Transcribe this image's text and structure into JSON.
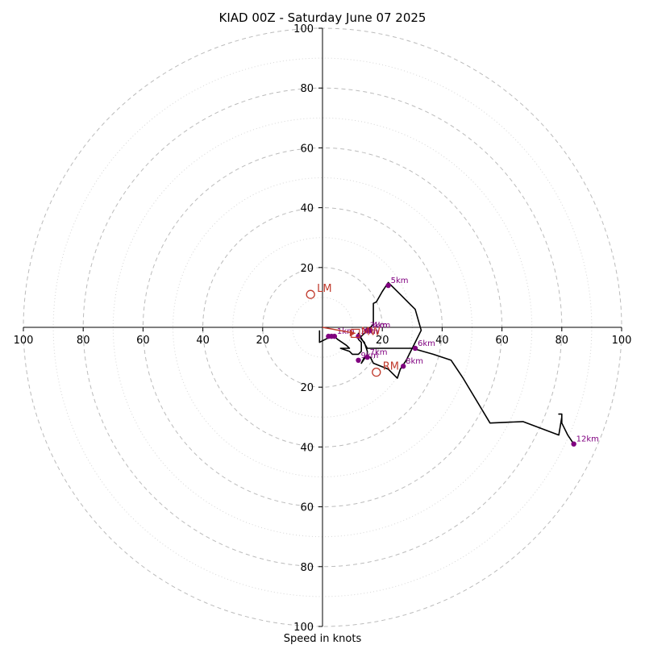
{
  "chart_data": {
    "type": "hodograph",
    "title": "KIAD 00Z - Saturday June 07 2025",
    "xlabel": "Speed in knots",
    "xlim": [
      -100,
      100
    ],
    "ylim": [
      -100,
      100
    ],
    "ring_step": 20,
    "ring_labels_x": [
      "100",
      "80",
      "60",
      "40",
      "20",
      "20",
      "40",
      "60",
      "80",
      "100"
    ],
    "ring_labels_y": [
      "100",
      "80",
      "60",
      "40",
      "20",
      "20",
      "40",
      "60",
      "80",
      "100"
    ],
    "grid": true,
    "trace": [
      [
        -1,
        -1
      ],
      [
        -1,
        -3
      ],
      [
        -1,
        -5
      ],
      [
        1,
        -4
      ],
      [
        3,
        -3
      ],
      [
        4,
        -3
      ],
      [
        5,
        -4
      ],
      [
        8,
        -6
      ],
      [
        9,
        -7
      ],
      [
        6,
        -7
      ],
      [
        9,
        -8
      ],
      [
        10,
        -9
      ],
      [
        12,
        -9
      ],
      [
        13,
        -8
      ],
      [
        13,
        -5
      ],
      [
        12,
        -4
      ],
      [
        12,
        -3
      ],
      [
        13,
        -3
      ],
      [
        14,
        -2
      ],
      [
        16,
        0
      ],
      [
        17,
        1
      ],
      [
        17,
        2
      ],
      [
        17,
        4
      ],
      [
        17,
        6
      ],
      [
        17,
        8
      ],
      [
        18,
        8.5
      ],
      [
        20,
        12
      ],
      [
        21,
        13.5
      ],
      [
        22,
        15
      ],
      [
        26,
        11
      ],
      [
        31,
        6
      ],
      [
        33,
        -1
      ],
      [
        31,
        -5
      ],
      [
        30,
        -7
      ],
      [
        28,
        -11
      ],
      [
        26,
        -14
      ],
      [
        25,
        -17
      ],
      [
        22,
        -14
      ],
      [
        17,
        -12
      ],
      [
        16,
        -10
      ],
      [
        14,
        -10
      ],
      [
        13,
        -12
      ],
      [
        15,
        -9
      ],
      [
        15,
        -8
      ],
      [
        14,
        -5
      ],
      [
        13,
        -4
      ],
      [
        12,
        -2
      ],
      [
        15,
        -7
      ],
      [
        16,
        -7
      ],
      [
        20,
        -7
      ],
      [
        28,
        -7
      ],
      [
        30,
        -7
      ],
      [
        37,
        -9
      ],
      [
        43,
        -11
      ],
      [
        47,
        -17
      ],
      [
        56,
        -32
      ],
      [
        67,
        -31.5
      ],
      [
        79,
        -36
      ],
      [
        80,
        -30
      ],
      [
        80,
        -29.5
      ],
      [
        80,
        -29
      ],
      [
        79,
        -29
      ],
      [
        80,
        -29
      ],
      [
        80,
        -32
      ],
      [
        82,
        -36
      ],
      [
        84,
        -39
      ]
    ],
    "height_markers": [
      {
        "label": "12km",
        "u": 84,
        "v": -39
      },
      {
        "label": "8km",
        "u": 27,
        "v": -13
      },
      {
        "label": "7km",
        "u": 15,
        "v": -10
      },
      {
        "label": "6km",
        "u": 31,
        "v": -7
      },
      {
        "label": "5km",
        "u": 22,
        "v": 14
      },
      {
        "label": "4km",
        "u": 16,
        "v": -1
      },
      {
        "label": "3km",
        "u": 15,
        "v": -1
      },
      {
        "label": "2km",
        "u": 12,
        "v": -3
      },
      {
        "label": "1km",
        "u": 4,
        "v": -3
      },
      {
        "label": "9km",
        "u": 12,
        "v": -11
      },
      {
        "label": "",
        "u": 3,
        "v": -3
      },
      {
        "label": "",
        "u": 2,
        "v": -3
      }
    ],
    "storm_motion": [
      {
        "label": "LM",
        "u": -4,
        "v": 11
      },
      {
        "label": "RM",
        "u": 18,
        "v": -15
      },
      {
        "label": "MW",
        "u": 11,
        "v": -2
      }
    ],
    "shear_vector": {
      "from": [
        0,
        0
      ],
      "to": [
        11,
        -2
      ]
    }
  },
  "colors": {
    "trace": "#000000",
    "marker": "#800080",
    "motion": "#c0392b",
    "ring_major": "#bbbbbb",
    "ring_minor": "#d6d6d6",
    "axis": "#000000"
  }
}
